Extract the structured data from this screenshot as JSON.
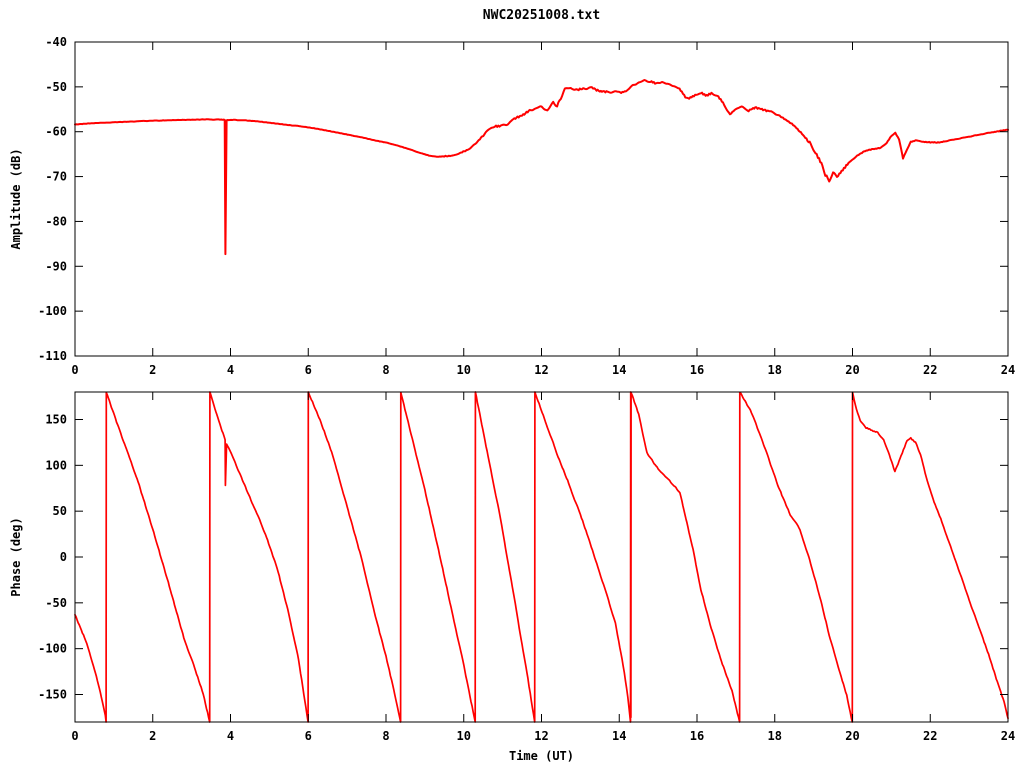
{
  "figure": {
    "title": "NWC20251008.txt",
    "background": "#ffffff",
    "line_color": "#ff0000",
    "axis_color": "#000000"
  },
  "chart_data": [
    {
      "type": "line",
      "panel": "amplitude",
      "title": "",
      "xlabel": "",
      "ylabel": "Amplitude (dB)",
      "xlim": [
        0,
        24
      ],
      "ylim": [
        -110,
        -40
      ],
      "xticks": [
        0,
        2,
        4,
        6,
        8,
        10,
        12,
        14,
        16,
        18,
        20,
        22,
        24
      ],
      "yticks": [
        -110,
        -100,
        -90,
        -80,
        -70,
        -60,
        -50,
        -40
      ],
      "grid": false,
      "legend": "none",
      "series": [
        {
          "name": "amplitude",
          "color": "#ff0000",
          "points": [
            [
              0,
              -58.4
            ],
            [
              0.3,
              -58.2
            ],
            [
              0.6,
              -58.05
            ],
            [
              1.0,
              -57.9
            ],
            [
              1.4,
              -57.75
            ],
            [
              1.8,
              -57.6
            ],
            [
              2.2,
              -57.5
            ],
            [
              2.6,
              -57.4
            ],
            [
              3.0,
              -57.35
            ],
            [
              3.4,
              -57.25
            ],
            [
              3.7,
              -57.3
            ],
            [
              3.85,
              -57.3
            ],
            [
              3.87,
              -87.3
            ],
            [
              3.9,
              -57.4
            ],
            [
              4.1,
              -57.35
            ],
            [
              4.4,
              -57.5
            ],
            [
              4.7,
              -57.7
            ],
            [
              5.0,
              -58.0
            ],
            [
              5.3,
              -58.3
            ],
            [
              5.6,
              -58.6
            ],
            [
              5.9,
              -58.9
            ],
            [
              6.2,
              -59.3
            ],
            [
              6.5,
              -59.8
            ],
            [
              6.8,
              -60.3
            ],
            [
              7.1,
              -60.8
            ],
            [
              7.4,
              -61.3
            ],
            [
              7.7,
              -61.9
            ],
            [
              8.0,
              -62.4
            ],
            [
              8.3,
              -63.1
            ],
            [
              8.6,
              -63.9
            ],
            [
              8.9,
              -64.8
            ],
            [
              9.1,
              -65.3
            ],
            [
              9.3,
              -65.6
            ],
            [
              9.5,
              -65.5
            ],
            [
              9.7,
              -65.3
            ],
            [
              9.9,
              -64.8
            ],
            [
              10.1,
              -64.0
            ],
            [
              10.3,
              -62.8
            ],
            [
              10.5,
              -60.8
            ],
            [
              10.65,
              -59.6
            ],
            [
              10.8,
              -58.6
            ],
            [
              10.95,
              -58.8
            ],
            [
              11.1,
              -58.3
            ],
            [
              11.3,
              -57.2
            ],
            [
              11.5,
              -56.3
            ],
            [
              11.7,
              -55.2
            ],
            [
              11.85,
              -54.7
            ],
            [
              12.0,
              -54.6
            ],
            [
              12.15,
              -55.1
            ],
            [
              12.3,
              -53.6
            ],
            [
              12.4,
              -54.3
            ],
            [
              12.5,
              -52.5
            ],
            [
              12.6,
              -50.6
            ],
            [
              12.75,
              -50.2
            ],
            [
              12.9,
              -50.6
            ],
            [
              13.1,
              -50.3
            ],
            [
              13.3,
              -50.2
            ],
            [
              13.5,
              -50.9
            ],
            [
              13.7,
              -51.2
            ],
            [
              13.9,
              -51.0
            ],
            [
              14.05,
              -51.4
            ],
            [
              14.2,
              -50.8
            ],
            [
              14.35,
              -49.7
            ],
            [
              14.5,
              -49.0
            ],
            [
              14.65,
              -48.6
            ],
            [
              14.8,
              -48.9
            ],
            [
              14.95,
              -49.3
            ],
            [
              15.1,
              -48.9
            ],
            [
              15.25,
              -49.4
            ],
            [
              15.4,
              -49.8
            ],
            [
              15.55,
              -50.4
            ],
            [
              15.7,
              -52.3
            ],
            [
              15.8,
              -52.6
            ],
            [
              15.95,
              -51.8
            ],
            [
              16.1,
              -51.4
            ],
            [
              16.25,
              -51.9
            ],
            [
              16.4,
              -51.5
            ],
            [
              16.55,
              -52.3
            ],
            [
              16.7,
              -54.0
            ],
            [
              16.85,
              -56.3
            ],
            [
              17.0,
              -54.9
            ],
            [
              17.15,
              -54.5
            ],
            [
              17.3,
              -55.3
            ],
            [
              17.5,
              -54.7
            ],
            [
              17.7,
              -55.0
            ],
            [
              17.9,
              -55.5
            ],
            [
              18.1,
              -56.3
            ],
            [
              18.3,
              -57.4
            ],
            [
              18.5,
              -58.7
            ],
            [
              18.7,
              -60.4
            ],
            [
              18.9,
              -62.6
            ],
            [
              19.05,
              -64.6
            ],
            [
              19.2,
              -67.3
            ],
            [
              19.3,
              -69.8
            ],
            [
              19.4,
              -70.8
            ],
            [
              19.5,
              -69.3
            ],
            [
              19.6,
              -70.2
            ],
            [
              19.75,
              -68.3
            ],
            [
              19.9,
              -67.0
            ],
            [
              20.1,
              -65.4
            ],
            [
              20.3,
              -64.4
            ],
            [
              20.5,
              -63.9
            ],
            [
              20.7,
              -63.6
            ],
            [
              20.85,
              -62.8
            ],
            [
              21.0,
              -60.9
            ],
            [
              21.1,
              -60.2
            ],
            [
              21.2,
              -61.8
            ],
            [
              21.3,
              -66.0
            ],
            [
              21.4,
              -64.0
            ],
            [
              21.5,
              -62.2
            ],
            [
              21.65,
              -61.9
            ],
            [
              21.8,
              -62.2
            ],
            [
              22.0,
              -62.4
            ],
            [
              22.2,
              -62.4
            ],
            [
              22.4,
              -62.1
            ],
            [
              22.7,
              -61.6
            ],
            [
              23.0,
              -61.1
            ],
            [
              23.3,
              -60.6
            ],
            [
              23.6,
              -60.1
            ],
            [
              23.8,
              -59.8
            ],
            [
              24,
              -59.6
            ]
          ]
        }
      ]
    },
    {
      "type": "line",
      "panel": "phase",
      "title": "",
      "xlabel": "Time (UT)",
      "ylabel": "Phase (deg)",
      "xlim": [
        0,
        24
      ],
      "ylim": [
        -180,
        180
      ],
      "xticks": [
        0,
        2,
        4,
        6,
        8,
        10,
        12,
        14,
        16,
        18,
        20,
        22,
        24
      ],
      "yticks": [
        -150,
        -100,
        -50,
        0,
        50,
        100,
        150
      ],
      "grid": false,
      "legend": "none",
      "wrap_times": [
        0.8,
        3.47,
        6.0,
        8.38,
        10.3,
        11.83,
        14.3,
        17.1,
        20.0
      ],
      "series": [
        {
          "name": "phase",
          "color": "#ff0000",
          "points": [
            [
              0,
              -63
            ],
            [
              0.3,
              -94
            ],
            [
              0.55,
              -130
            ],
            [
              0.78,
              -172
            ],
            [
              0.8,
              -180
            ],
            [
              0.805,
              180
            ],
            [
              1.2,
              132
            ],
            [
              1.6,
              85
            ],
            [
              2.0,
              30
            ],
            [
              2.4,
              -28
            ],
            [
              2.8,
              -88
            ],
            [
              3.1,
              -124
            ],
            [
              3.3,
              -150
            ],
            [
              3.465,
              -180
            ],
            [
              3.47,
              180
            ],
            [
              3.7,
              148
            ],
            [
              3.86,
              128
            ],
            [
              3.87,
              78
            ],
            [
              3.9,
              124
            ],
            [
              4.2,
              95
            ],
            [
              4.55,
              60
            ],
            [
              4.9,
              25
            ],
            [
              5.2,
              -12
            ],
            [
              5.5,
              -62
            ],
            [
              5.75,
              -112
            ],
            [
              5.995,
              -180
            ],
            [
              6.0,
              180
            ],
            [
              6.3,
              150
            ],
            [
              6.6,
              115
            ],
            [
              7.0,
              55
            ],
            [
              7.35,
              2
            ],
            [
              7.7,
              -60
            ],
            [
              8.0,
              -108
            ],
            [
              8.2,
              -145
            ],
            [
              8.375,
              -180
            ],
            [
              8.38,
              180
            ],
            [
              8.7,
              125
            ],
            [
              9.0,
              73
            ],
            [
              9.35,
              8
            ],
            [
              9.7,
              -60
            ],
            [
              10.0,
              -118
            ],
            [
              10.295,
              -180
            ],
            [
              10.3,
              180
            ],
            [
              10.6,
              115
            ],
            [
              10.9,
              52
            ],
            [
              11.15,
              -8
            ],
            [
              11.4,
              -70
            ],
            [
              11.65,
              -133
            ],
            [
              11.825,
              -180
            ],
            [
              11.83,
              180
            ],
            [
              12.1,
              148
            ],
            [
              12.4,
              112
            ],
            [
              12.7,
              80
            ],
            [
              13.0,
              46
            ],
            [
              13.2,
              22
            ],
            [
              13.42,
              -7
            ],
            [
              13.7,
              -44
            ],
            [
              13.9,
              -72
            ],
            [
              14.1,
              -118
            ],
            [
              14.22,
              -152
            ],
            [
              14.29,
              -180
            ],
            [
              14.295,
              180
            ],
            [
              14.3,
              -175
            ],
            [
              14.305,
              180
            ],
            [
              14.5,
              156
            ],
            [
              14.71,
              114
            ],
            [
              15.0,
              96
            ],
            [
              15.3,
              83
            ],
            [
              15.56,
              70
            ],
            [
              15.9,
              8
            ],
            [
              16.1,
              -36
            ],
            [
              16.34,
              -74
            ],
            [
              16.6,
              -110
            ],
            [
              16.9,
              -146
            ],
            [
              17.095,
              -180
            ],
            [
              17.1,
              180
            ],
            [
              17.4,
              158
            ],
            [
              17.79,
              114
            ],
            [
              18.1,
              76
            ],
            [
              18.4,
              46
            ],
            [
              18.65,
              30
            ],
            [
              18.9,
              -4
            ],
            [
              19.16,
              -43
            ],
            [
              19.4,
              -85
            ],
            [
              19.68,
              -127
            ],
            [
              19.85,
              -151
            ],
            [
              19.995,
              -180
            ],
            [
              20.0,
              180
            ],
            [
              20.1,
              162
            ],
            [
              20.2,
              148
            ],
            [
              20.35,
              141
            ],
            [
              20.5,
              138
            ],
            [
              20.65,
              136
            ],
            [
              20.8,
              128
            ],
            [
              20.95,
              111
            ],
            [
              21.09,
              93
            ],
            [
              21.25,
              110
            ],
            [
              21.4,
              127
            ],
            [
              21.5,
              130
            ],
            [
              21.62,
              125
            ],
            [
              21.75,
              112
            ],
            [
              21.9,
              86
            ],
            [
              22.1,
              60
            ],
            [
              22.3,
              38
            ],
            [
              22.55,
              8
            ],
            [
              22.8,
              -22
            ],
            [
              23.05,
              -53
            ],
            [
              23.3,
              -82
            ],
            [
              23.5,
              -106
            ],
            [
              23.7,
              -133
            ],
            [
              23.9,
              -158
            ],
            [
              24,
              -176
            ]
          ]
        }
      ]
    }
  ]
}
